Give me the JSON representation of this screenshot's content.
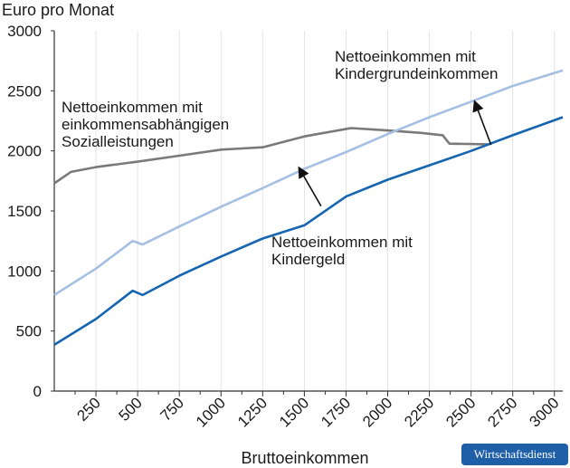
{
  "chart_data": {
    "type": "line",
    "ylabel": "Euro pro Monat",
    "xlabel": "Bruttoeinkommen",
    "xlim": [
      0,
      3050
    ],
    "ylim": [
      0,
      3000
    ],
    "x_ticks": [
      250,
      500,
      750,
      1000,
      1250,
      1500,
      1750,
      2000,
      2250,
      2500,
      2750,
      3000
    ],
    "y_ticks": [
      0,
      500,
      1000,
      1500,
      2000,
      2500,
      3000
    ],
    "grid": "vertical",
    "series": [
      {
        "key": "sozial",
        "color": "#7a7a7a",
        "points": [
          [
            0,
            1730
          ],
          [
            100,
            1825
          ],
          [
            250,
            1865
          ],
          [
            500,
            1910
          ],
          [
            750,
            1960
          ],
          [
            1000,
            2010
          ],
          [
            1250,
            2030
          ],
          [
            1500,
            2120
          ],
          [
            1780,
            2190
          ],
          [
            2000,
            2170
          ],
          [
            2200,
            2150
          ],
          [
            2330,
            2130
          ],
          [
            2370,
            2060
          ],
          [
            2600,
            2055
          ]
        ]
      },
      {
        "key": "grundeinkommen",
        "color": "#a5c0e4",
        "points": [
          [
            0,
            800
          ],
          [
            250,
            1020
          ],
          [
            470,
            1250
          ],
          [
            530,
            1220
          ],
          [
            750,
            1370
          ],
          [
            1000,
            1535
          ],
          [
            1250,
            1690
          ],
          [
            1500,
            1850
          ],
          [
            1750,
            1990
          ],
          [
            2000,
            2140
          ],
          [
            2250,
            2280
          ],
          [
            2500,
            2410
          ],
          [
            2750,
            2540
          ],
          [
            3050,
            2670
          ]
        ]
      },
      {
        "key": "kindergeld",
        "color": "#1565b0",
        "points": [
          [
            0,
            385
          ],
          [
            250,
            600
          ],
          [
            470,
            835
          ],
          [
            530,
            800
          ],
          [
            750,
            960
          ],
          [
            1000,
            1120
          ],
          [
            1250,
            1270
          ],
          [
            1500,
            1380
          ],
          [
            1750,
            1620
          ],
          [
            2000,
            1760
          ],
          [
            2250,
            1880
          ],
          [
            2500,
            2000
          ],
          [
            2750,
            2130
          ],
          [
            3050,
            2280
          ]
        ]
      }
    ],
    "annotations": [
      {
        "key": "sozial",
        "lines": [
          "Nettoeinkommen mit",
          "einkommensabhängigen",
          "Sozialleistungen"
        ]
      },
      {
        "key": "grundeinkommen",
        "lines": [
          "Nettoeinkommen mit",
          "Kindergrundeinkommen"
        ]
      },
      {
        "key": "kindergeld",
        "lines": [
          "Nettoeinkommen mit",
          "Kindergeld"
        ]
      }
    ],
    "arrows": [
      {
        "from": [
          1600,
          1540
        ],
        "to": [
          1480,
          1830
        ]
      },
      {
        "from": [
          2620,
          2050
        ],
        "to": [
          2530,
          2380
        ]
      }
    ]
  },
  "branding": {
    "logo": "Wirtschaftsdienst"
  }
}
